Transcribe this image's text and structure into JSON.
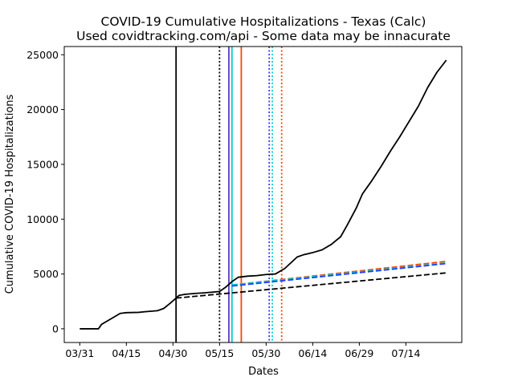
{
  "chart_data": {
    "type": "line",
    "title": "COVID-19 Cumulative Hospitalizations - Texas (Calc)",
    "subtitle": "Used covidtracking.com/api - Some data may be innacurate",
    "xlabel": "Dates",
    "ylabel": "Cumulative COVID-19 Hospitalizations",
    "x_axis_type": "date",
    "xlim": [
      "2020-03-26",
      "2020-08-01"
    ],
    "ylim": [
      -1250,
      25750
    ],
    "xticks": [
      {
        "date": "2020-03-31",
        "label": "03/31"
      },
      {
        "date": "2020-04-15",
        "label": "04/15"
      },
      {
        "date": "2020-04-30",
        "label": "04/30"
      },
      {
        "date": "2020-05-15",
        "label": "05/15"
      },
      {
        "date": "2020-05-30",
        "label": "05/30"
      },
      {
        "date": "2020-06-14",
        "label": "06/14"
      },
      {
        "date": "2020-06-29",
        "label": "06/29"
      },
      {
        "date": "2020-07-14",
        "label": "07/14"
      }
    ],
    "yticks": [
      0,
      5000,
      10000,
      15000,
      20000,
      25000
    ],
    "grid": false,
    "legend": "none",
    "series": [
      {
        "style": "solid",
        "color": "#000000",
        "points": [
          [
            "2020-03-31",
            0
          ],
          [
            "2020-04-06",
            0
          ],
          [
            "2020-04-07",
            400
          ],
          [
            "2020-04-10",
            900
          ],
          [
            "2020-04-13",
            1400
          ],
          [
            "2020-04-15",
            1470
          ],
          [
            "2020-04-19",
            1500
          ],
          [
            "2020-04-21",
            1560
          ],
          [
            "2020-04-25",
            1650
          ],
          [
            "2020-04-27",
            1850
          ],
          [
            "2020-04-29",
            2300
          ],
          [
            "2020-05-01",
            2800
          ],
          [
            "2020-05-02",
            3050
          ],
          [
            "2020-05-04",
            3150
          ],
          [
            "2020-05-07",
            3220
          ],
          [
            "2020-05-10",
            3280
          ],
          [
            "2020-05-13",
            3350
          ],
          [
            "2020-05-15",
            3400
          ],
          [
            "2020-05-17",
            3800
          ],
          [
            "2020-05-19",
            4300
          ],
          [
            "2020-05-21",
            4700
          ],
          [
            "2020-05-24",
            4800
          ],
          [
            "2020-05-27",
            4850
          ],
          [
            "2020-05-30",
            4950
          ],
          [
            "2020-06-02",
            5000
          ],
          [
            "2020-06-05",
            5500
          ],
          [
            "2020-06-09",
            6550
          ],
          [
            "2020-06-11",
            6750
          ],
          [
            "2020-06-14",
            6950
          ],
          [
            "2020-06-17",
            7200
          ],
          [
            "2020-06-20",
            7700
          ],
          [
            "2020-06-23",
            8400
          ],
          [
            "2020-06-25",
            9400
          ],
          [
            "2020-06-28",
            11000
          ],
          [
            "2020-06-30",
            12300
          ],
          [
            "2020-07-03",
            13500
          ],
          [
            "2020-07-06",
            14800
          ],
          [
            "2020-07-09",
            16200
          ],
          [
            "2020-07-12",
            17500
          ],
          [
            "2020-07-15",
            18900
          ],
          [
            "2020-07-18",
            20300
          ],
          [
            "2020-07-21",
            22000
          ],
          [
            "2020-07-24",
            23400
          ],
          [
            "2020-07-27",
            24500
          ]
        ]
      },
      {
        "style": "dashed",
        "color": "#000000",
        "points": [
          [
            "2020-05-01",
            2800
          ],
          [
            "2020-07-27",
            5100
          ]
        ]
      },
      {
        "style": "dashed",
        "color": "#ff4500",
        "points": [
          [
            "2020-05-19",
            4000
          ],
          [
            "2020-07-27",
            6150
          ]
        ]
      },
      {
        "style": "dashed",
        "color": "#00ced1",
        "points": [
          [
            "2020-05-19",
            4000
          ],
          [
            "2020-07-27",
            6000
          ]
        ]
      },
      {
        "style": "dashed",
        "color": "#1f3fff",
        "points": [
          [
            "2020-05-19",
            3900
          ],
          [
            "2020-07-27",
            5950
          ]
        ]
      }
    ],
    "vertical_lines": [
      {
        "date": "2020-05-01",
        "color": "#000000",
        "style": "solid"
      },
      {
        "date": "2020-05-15",
        "color": "#000000",
        "style": "dotted"
      },
      {
        "date": "2020-05-18",
        "color": "#5b3cc4",
        "style": "solid"
      },
      {
        "date": "2020-05-19",
        "color": "#00ced1",
        "style": "solid"
      },
      {
        "date": "2020-05-22",
        "color": "#ff4500",
        "style": "solid"
      },
      {
        "date": "2020-05-31",
        "color": "#1f3fff",
        "style": "dotted"
      },
      {
        "date": "2020-06-01",
        "color": "#00ced1",
        "style": "dotted"
      },
      {
        "date": "2020-06-04",
        "color": "#ff4500",
        "style": "dotted"
      }
    ]
  }
}
